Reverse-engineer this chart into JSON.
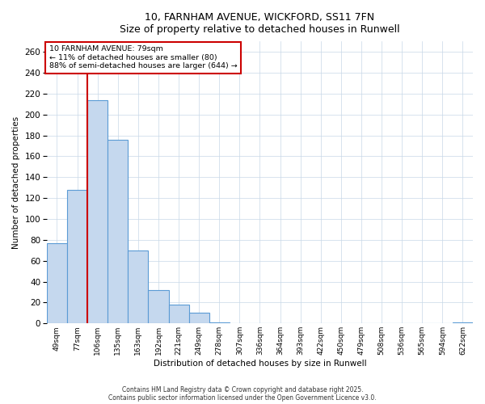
{
  "title_line1": "10, FARNHAM AVENUE, WICKFORD, SS11 7FN",
  "title_line2": "Size of property relative to detached houses in Runwell",
  "xlabel": "Distribution of detached houses by size in Runwell",
  "ylabel": "Number of detached properties",
  "categories": [
    "49sqm",
    "77sqm",
    "106sqm",
    "135sqm",
    "163sqm",
    "192sqm",
    "221sqm",
    "249sqm",
    "278sqm",
    "307sqm",
    "336sqm",
    "364sqm",
    "393sqm",
    "422sqm",
    "450sqm",
    "479sqm",
    "508sqm",
    "536sqm",
    "565sqm",
    "594sqm",
    "622sqm"
  ],
  "values": [
    77,
    128,
    214,
    176,
    70,
    32,
    18,
    10,
    1,
    0,
    0,
    0,
    0,
    0,
    0,
    0,
    0,
    0,
    0,
    0,
    1
  ],
  "bar_color": "#c5d8ee",
  "bar_edge_color": "#5b9bd5",
  "marker_line_color": "#cc0000",
  "annotation_box_edge_color": "#cc0000",
  "annotation_line1": "10 FARNHAM AVENUE: 79sqm",
  "annotation_line2": "← 11% of detached houses are smaller (80)",
  "annotation_line3": "88% of semi-detached houses are larger (644) →",
  "ylim": [
    0,
    270
  ],
  "yticks": [
    0,
    20,
    40,
    60,
    80,
    100,
    120,
    140,
    160,
    180,
    200,
    220,
    240,
    260
  ],
  "grid_color": "#c8d8e8",
  "bg_color": "#ffffff",
  "footer_line1": "Contains HM Land Registry data © Crown copyright and database right 2025.",
  "footer_line2": "Contains public sector information licensed under the Open Government Licence v3.0.",
  "bar_width": 1.0
}
